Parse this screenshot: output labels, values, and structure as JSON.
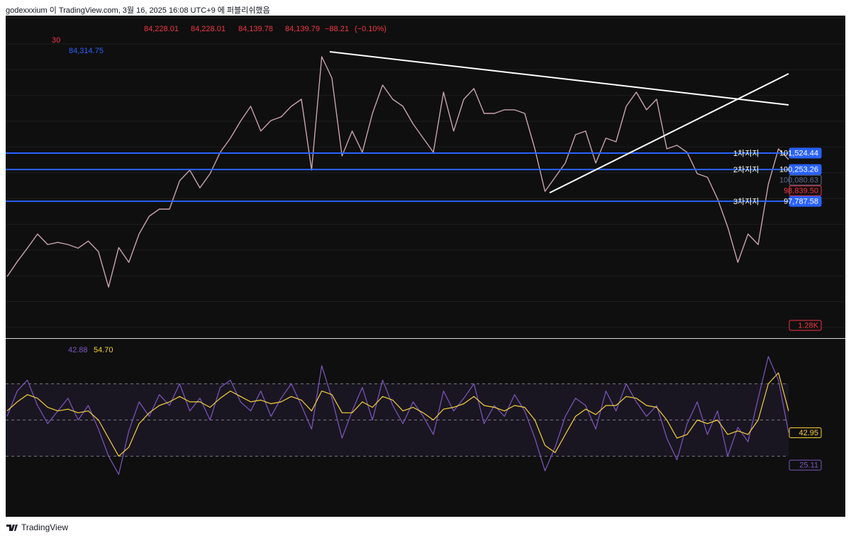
{
  "header": {
    "publisher": "godexxxium 이 TradingView.com, 3월 16, 2025 16:08 UTC+9 에 퍼블리쉬했음"
  },
  "footer": {
    "brand": "TradingView"
  },
  "chart_data": [
    {
      "type": "line",
      "interval": "30",
      "ohlc": [
        {
          "value": 84228.01,
          "label": "84,228.01"
        },
        {
          "value": 84228.01,
          "label": "84,228.01"
        },
        {
          "value": 84139.78,
          "label": "84,139.78"
        },
        {
          "value": 84139.79,
          "label": "84,139.79"
        }
      ],
      "change": {
        "value": -88.21,
        "label": "−88.21"
      },
      "change_pct": {
        "value": -0.1,
        "label": "(−0.10%)"
      },
      "ma_value": {
        "value": 84314.75,
        "label": "84,314.75"
      },
      "ylim": [
        87280,
        112190
      ],
      "ygrid": [
        88000,
        90000,
        92000,
        94000,
        96000,
        98000,
        100000,
        102000,
        104000,
        106000,
        108000,
        110000,
        112000
      ],
      "grid": true,
      "series": [
        {
          "color": "#c9a3ad",
          "values": [
            91950,
            93100,
            94150,
            95250,
            94430,
            94600,
            94430,
            94150,
            94700,
            93880,
            91130,
            94200,
            93050,
            95250,
            96630,
            97180,
            97180,
            99380,
            100200,
            98830,
            99930,
            101580,
            102680,
            104000,
            105150,
            103230,
            104050,
            104330,
            105150,
            105700,
            100200,
            109000,
            107350,
            101300,
            103230,
            101580,
            104600,
            106800,
            105700,
            105150,
            103780,
            102680,
            101580,
            106250,
            103230,
            105700,
            106530,
            104600,
            104600,
            104880,
            104880,
            104600,
            101850,
            98550,
            99650,
            100750,
            102950,
            103230,
            100750,
            102680,
            102400,
            105150,
            106250,
            104880,
            105700,
            101850,
            102130,
            101580,
            99930,
            99650,
            97980,
            95800,
            93050,
            95250,
            94430,
            99100,
            101850,
            101030
          ]
        }
      ],
      "level_color": "#2962ff",
      "levels": [
        {
          "value": 101524.44,
          "label": "101,524.44",
          "name": "1차지지"
        },
        {
          "value": 100253.26,
          "label": "100,253.26",
          "name": "2차지지"
        },
        {
          "value": 97787.58,
          "label": "97,787.58",
          "name": "3차지지"
        }
      ],
      "price_tags": [
        {
          "value": 100080.63,
          "label": "100,080.63",
          "color": "#5d6b8a"
        },
        {
          "value": 98839.5,
          "label": "98,839.50",
          "color": "#f23645"
        }
      ],
      "volume_tag": {
        "value": 1280,
        "label": "1.28K",
        "color": "#f23645"
      }
    },
    {
      "type": "line",
      "ylim": [
        -3,
        94
      ],
      "levels": [
        30,
        50,
        70
      ],
      "series": [
        {
          "color": "#7e57c2",
          "current": 42.88,
          "values": [
            52,
            66,
            72,
            58,
            48,
            55,
            62,
            50,
            58,
            45,
            30,
            20,
            44,
            60,
            52,
            64,
            58,
            70,
            55,
            62,
            50,
            68,
            72,
            60,
            55,
            66,
            52,
            62,
            70,
            58,
            45,
            80,
            62,
            40,
            55,
            68,
            50,
            72,
            58,
            48,
            60,
            52,
            42,
            66,
            55,
            62,
            70,
            48,
            58,
            52,
            64,
            55,
            40,
            22,
            35,
            52,
            62,
            58,
            45,
            66,
            55,
            70,
            60,
            52,
            58,
            40,
            28,
            48,
            60,
            42,
            55,
            30,
            46,
            38,
            62,
            85,
            72,
            43
          ]
        },
        {
          "color": "#f5d03a",
          "current": {
            "value": 54.7,
            "label": "54.70"
          },
          "values": [
            55,
            60,
            64,
            62,
            57,
            55,
            56,
            54,
            55,
            50,
            40,
            30,
            35,
            48,
            54,
            58,
            60,
            63,
            60,
            60,
            57,
            62,
            66,
            63,
            60,
            61,
            59,
            60,
            63,
            61,
            55,
            66,
            64,
            54,
            54,
            60,
            57,
            63,
            61,
            55,
            57,
            54,
            50,
            56,
            57,
            59,
            63,
            58,
            57,
            55,
            58,
            57,
            50,
            36,
            32,
            42,
            52,
            56,
            53,
            58,
            58,
            63,
            62,
            58,
            57,
            50,
            40,
            42,
            50,
            48,
            50,
            42,
            44,
            42,
            50,
            70,
            76,
            55
          ]
        }
      ],
      "tags": [
        {
          "value": 42.95,
          "color": "#f5d03a"
        },
        {
          "value": 25.11,
          "color": "#7e57c2"
        }
      ]
    }
  ]
}
